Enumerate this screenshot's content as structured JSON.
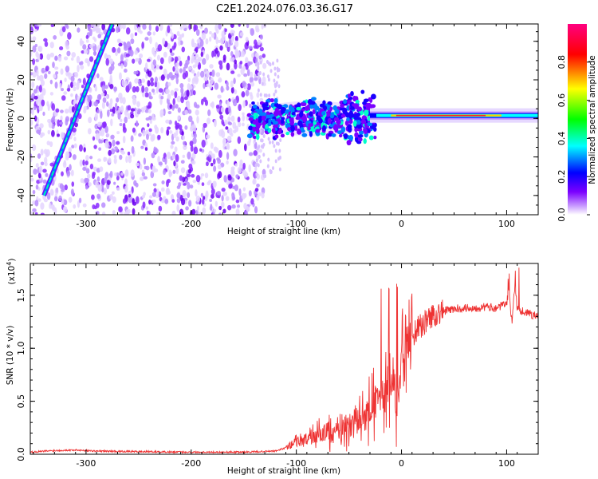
{
  "title": "C2E1.2024.076.03.36.G17",
  "chart_data": [
    {
      "type": "heatmap",
      "xlabel": "Height of straight line (km)",
      "ylabel": "Frequency (Hz)",
      "xlim": [
        -353,
        130
      ],
      "ylim": [
        -50,
        49
      ],
      "x_ticks": [
        -300,
        -200,
        -100,
        0,
        100
      ],
      "y_ticks": [
        -40,
        -20,
        0,
        20,
        40
      ],
      "colorbar": {
        "label": "Normalized spectral amplitude",
        "range": [
          0.0,
          1.0
        ],
        "ticks": [
          "0.0",
          "0.2",
          "0.4",
          "0.6",
          "0.8"
        ],
        "colors": [
          "#ffffff",
          "#7b00ff",
          "#0000ff",
          "#00ffff",
          "#00ff00",
          "#ffff00",
          "#ff0000",
          "#ff0080"
        ]
      },
      "features": {
        "noise_region_x": [
          -353,
          -130
        ],
        "cluster_region_x": [
          -145,
          -25
        ],
        "cluster_freq_center": 0,
        "steady_tone_x": [
          -30,
          130
        ],
        "steady_tone_freq": 1.5,
        "diagonal_line": {
          "x": [
            -340,
            -275
          ],
          "freq": [
            -40,
            49
          ]
        }
      }
    },
    {
      "type": "line",
      "xlabel": "Height of straight line (km)",
      "ylabel": "SNR (10 * v/v)",
      "scale_label": "(x10",
      "scale_exponent": "4",
      "scale_suffix": ")",
      "xlim": [
        -353,
        130
      ],
      "ylim": [
        0,
        1.8
      ],
      "x_ticks": [
        -300,
        -200,
        -100,
        0,
        100
      ],
      "y_ticks": [
        "0.0",
        "0.5",
        "1.0",
        "1.5"
      ],
      "color": "#ee3333",
      "series": [
        {
          "x": [
            -353,
            -330,
            -310,
            -290,
            -250,
            -200,
            -150,
            -120,
            -110,
            -100,
            -90,
            -80,
            -70,
            -60,
            -50,
            -40,
            -30,
            -25,
            -20,
            -15,
            -12,
            -10,
            -8,
            -5,
            0,
            5,
            10,
            15,
            20,
            25,
            30,
            40,
            50,
            60,
            70,
            80,
            90,
            95,
            100,
            102,
            105,
            108,
            110,
            115,
            120,
            130
          ],
          "values": [
            0.02,
            0.035,
            0.04,
            0.03,
            0.025,
            0.02,
            0.02,
            0.03,
            0.06,
            0.12,
            0.14,
            0.18,
            0.22,
            0.2,
            0.28,
            0.32,
            0.4,
            0.48,
            0.55,
            0.6,
            0.62,
            0.65,
            0.75,
            0.2,
            0.95,
            1.05,
            1.12,
            1.18,
            1.22,
            1.28,
            1.31,
            1.35,
            1.37,
            1.38,
            1.38,
            1.39,
            1.38,
            1.4,
            1.42,
            1.55,
            1.25,
            1.6,
            1.38,
            1.35,
            1.33,
            1.3
          ]
        }
      ]
    }
  ]
}
